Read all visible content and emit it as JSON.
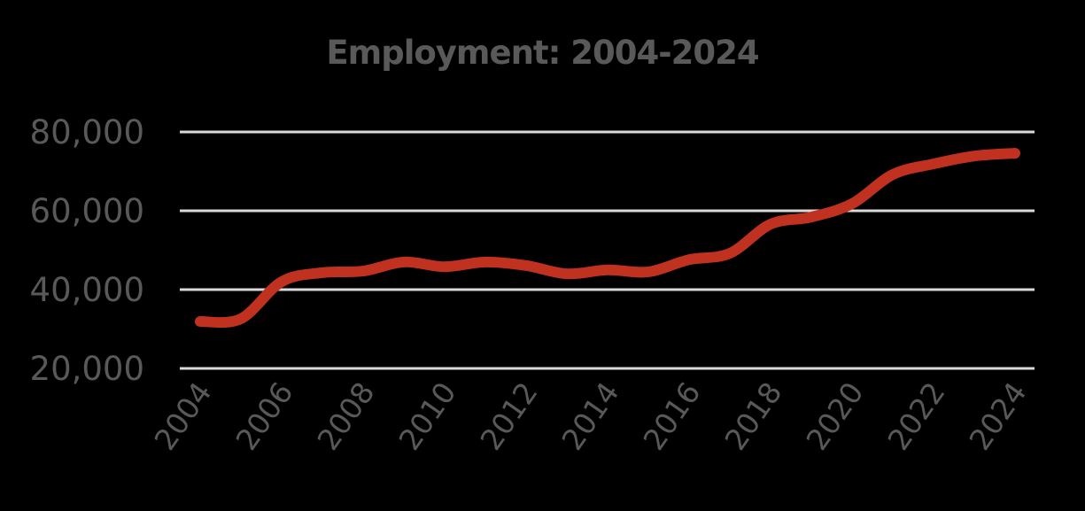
{
  "chart_data": {
    "type": "line",
    "title": "Employment: 2004-2024",
    "xlabel": "",
    "ylabel": "",
    "x": [
      2004,
      2005,
      2006,
      2007,
      2008,
      2009,
      2010,
      2011,
      2012,
      2013,
      2014,
      2015,
      2016,
      2017,
      2018,
      2019,
      2020,
      2021,
      2022,
      2023,
      2024
    ],
    "series": [
      {
        "name": "Employment",
        "color": "#c0311f",
        "values": [
          31900,
          32600,
          42000,
          44300,
          44700,
          47000,
          45800,
          47000,
          46100,
          44000,
          45000,
          44500,
          47600,
          49200,
          56600,
          58400,
          61800,
          69200,
          71900,
          73900,
          74600
        ]
      }
    ],
    "x_tick_labels": [
      "2004",
      "2006",
      "2008",
      "2010",
      "2012",
      "2014",
      "2016",
      "2018",
      "2020",
      "2022",
      "2024"
    ],
    "y_tick_labels": [
      "80,000",
      "60,000",
      "40,000",
      "20,000"
    ],
    "y_ticks": [
      80000,
      60000,
      40000,
      20000
    ],
    "ylim": [
      20000,
      80000
    ],
    "grid": true,
    "legend": "none",
    "background": "#000000",
    "text_color": "#595959",
    "grid_color": "#d9d9d9"
  }
}
